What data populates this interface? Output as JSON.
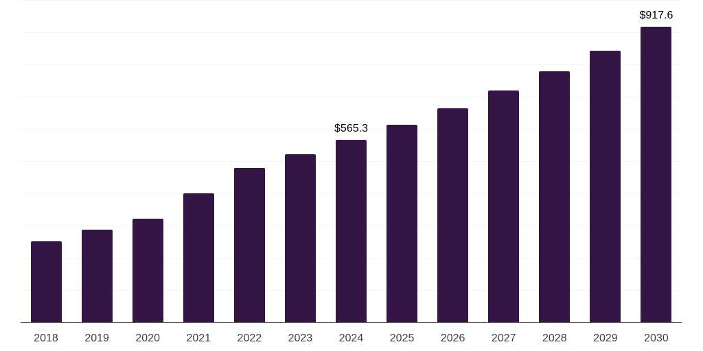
{
  "chart_data": {
    "type": "bar",
    "title": "",
    "xlabel": "",
    "ylabel": "",
    "categories": [
      "2018",
      "2019",
      "2020",
      "2021",
      "2022",
      "2023",
      "2024",
      "2025",
      "2026",
      "2027",
      "2028",
      "2029",
      "2030"
    ],
    "values": [
      251,
      288,
      322,
      400,
      478,
      522,
      565.3,
      612,
      664,
      719,
      778,
      843,
      917.6
    ],
    "data_labels": [
      "",
      "",
      "",
      "",
      "",
      "",
      "$565.3",
      "",
      "",
      "",
      "",
      "",
      "$917.6"
    ],
    "ylim": [
      0,
      1000
    ],
    "grid_interval": 100,
    "grid": true,
    "legend": false,
    "y_axis_labels_visible": false
  },
  "colors": {
    "background": "#ffffff",
    "bar": "#351546",
    "gridline": "#f4f4f4",
    "axis_line": "#555555",
    "tick_label": "#404040",
    "data_label": "#000000"
  }
}
